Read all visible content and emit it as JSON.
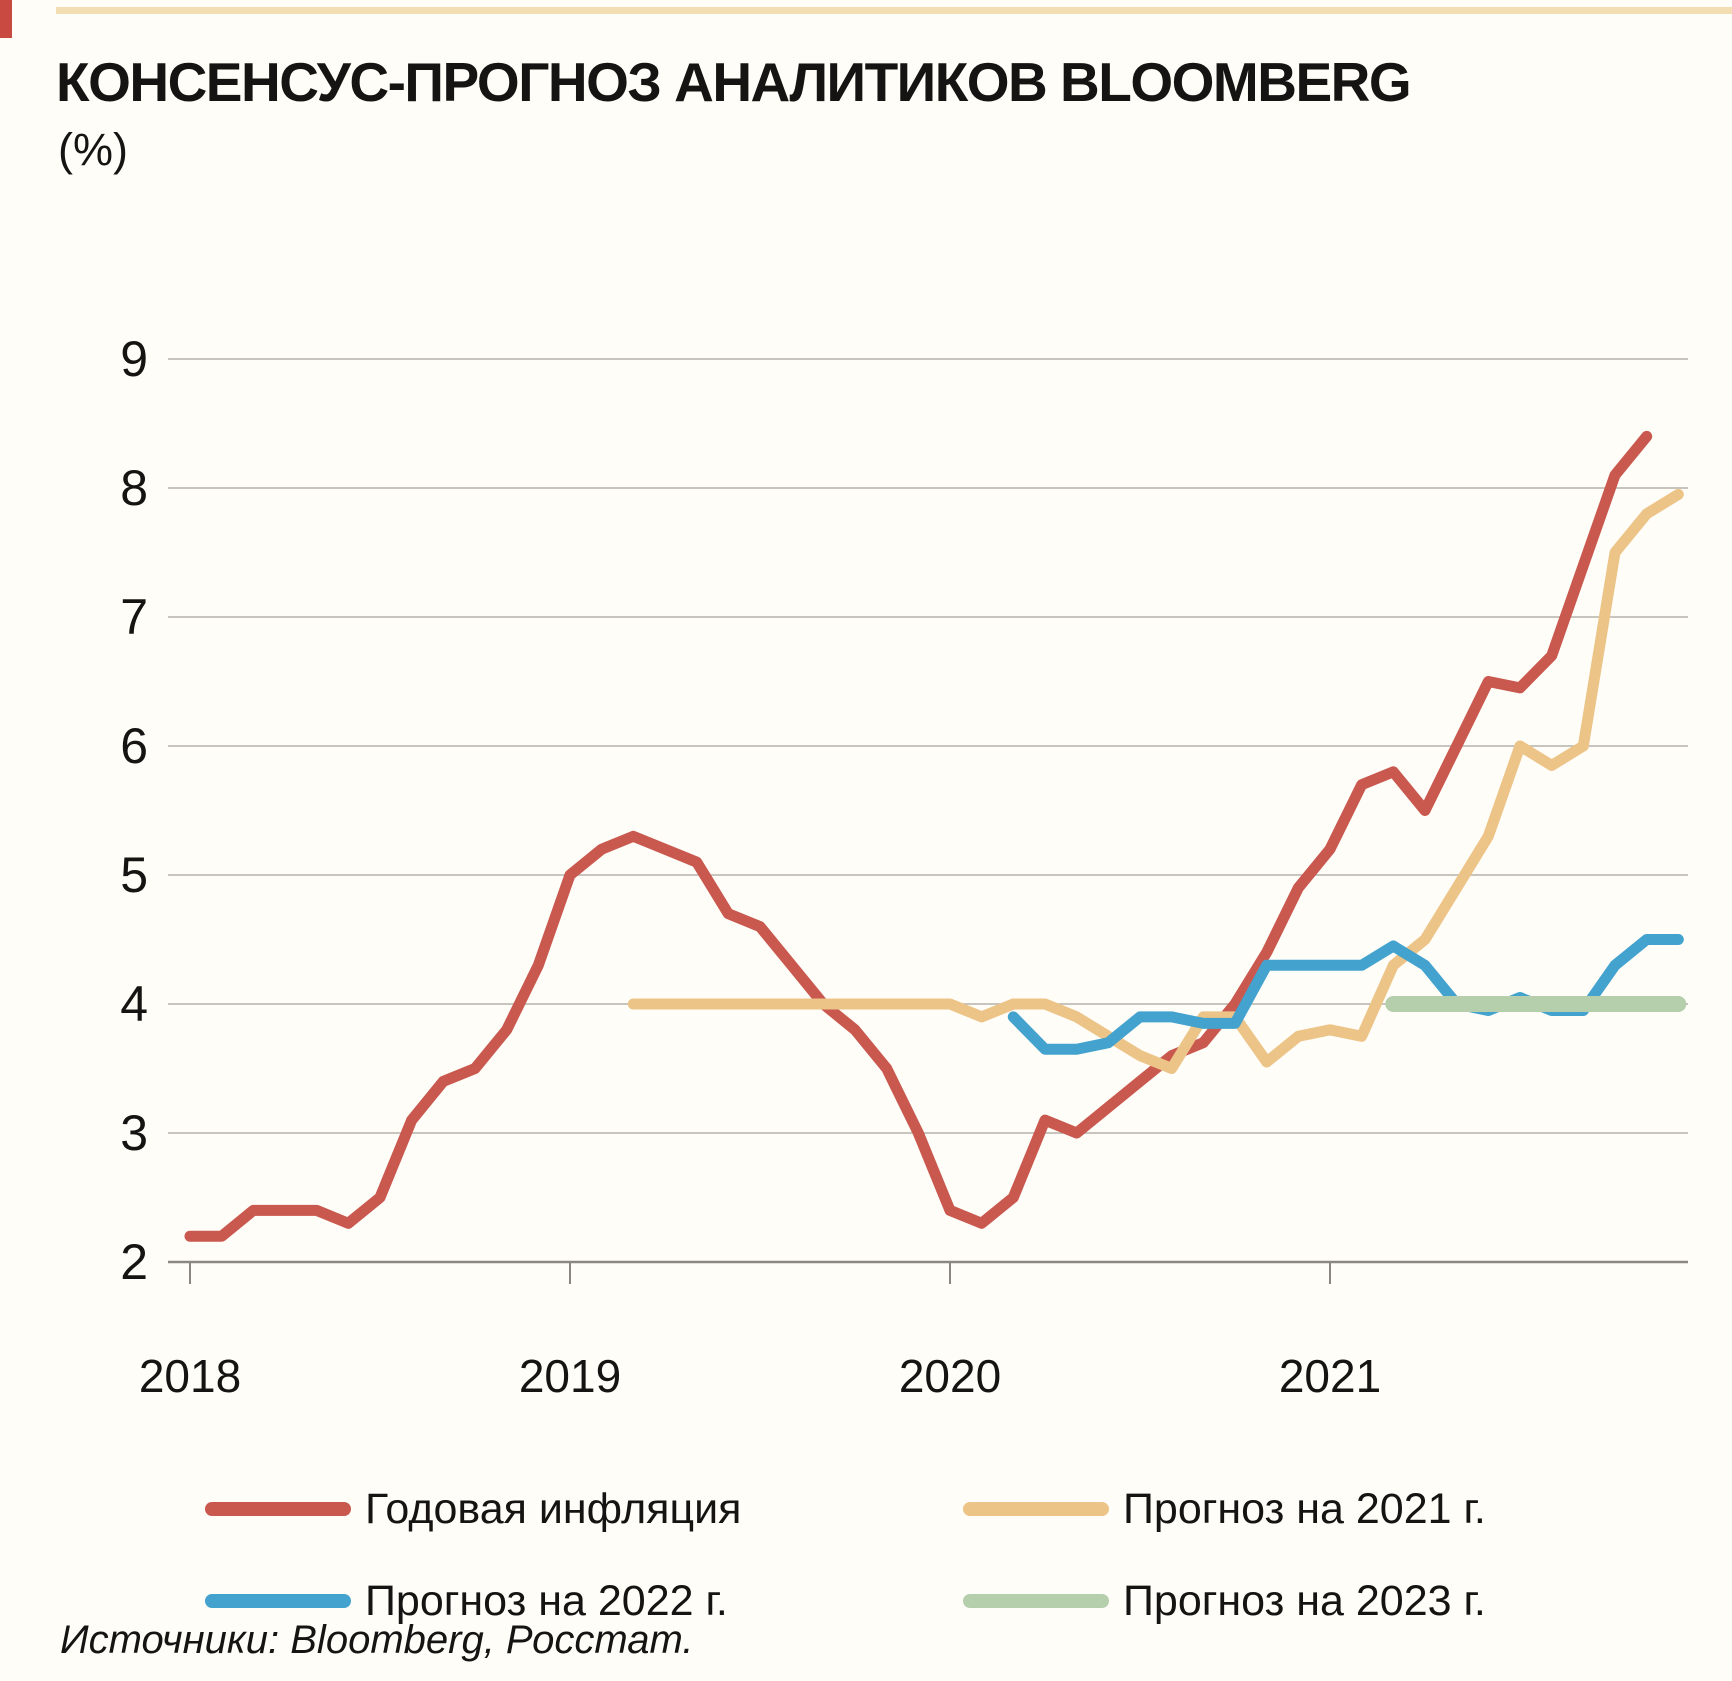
{
  "page": {
    "title": "КОНСЕНСУС-ПРОГНОЗ АНАЛИТИКОВ BLOOMBERG",
    "subtitle": "(%)",
    "source": "Источники: Bloomberg, Росстат."
  },
  "theme": {
    "background": "#fffdf8",
    "top_rule_color": "#f3ddb3",
    "corner_mark_color": "#c94a40",
    "grid_color": "#b5b1aa",
    "axis_color": "#8a8781",
    "text_color": "#161412"
  },
  "chart_data": {
    "type": "line",
    "title": "КОНСЕНСУС-ПРОГНОЗ АНАЛИТИКОВ BLOOMBERG",
    "ylabel": "(%)",
    "xlabel": "",
    "ylim": [
      2,
      9
    ],
    "ytick_labels": [
      9,
      8,
      7,
      6,
      5,
      4,
      3,
      2
    ],
    "xtick_labels": [
      "2018",
      "2019",
      "2020",
      "2021"
    ],
    "grid": true,
    "legend_position": "bottom-two-columns",
    "x_unit": "months, index 0 = Jan 2018, monthly points through Dec 2021",
    "series": [
      {
        "name": "Годовая инфляция",
        "color": "#c9584f",
        "stroke_width": 11,
        "start_month_index": 0,
        "values": [
          2.2,
          2.2,
          2.4,
          2.4,
          2.4,
          2.3,
          2.5,
          3.1,
          3.4,
          3.5,
          3.8,
          4.3,
          5.0,
          5.2,
          5.3,
          5.2,
          5.1,
          4.7,
          4.6,
          4.3,
          4.0,
          3.8,
          3.5,
          3.0,
          2.4,
          2.3,
          2.5,
          3.1,
          3.0,
          3.2,
          3.4,
          3.6,
          3.7,
          4.0,
          4.4,
          4.9,
          5.2,
          5.7,
          5.8,
          5.5,
          6.0,
          6.5,
          6.45,
          6.7,
          7.4,
          8.1,
          8.4
        ]
      },
      {
        "name": "Прогноз на 2021 г.",
        "color": "#edc487",
        "stroke_width": 11,
        "start_month_index": 14,
        "values": [
          4.0,
          4.0,
          4.0,
          4.0,
          4.0,
          4.0,
          4.0,
          4.0,
          4.0,
          4.0,
          4.0,
          3.9,
          4.0,
          4.0,
          3.9,
          3.75,
          3.6,
          3.5,
          3.9,
          3.9,
          3.55,
          3.75,
          3.8,
          3.75,
          4.3,
          4.5,
          4.9,
          5.3,
          6.0,
          5.85,
          6.0,
          7.5,
          7.8,
          7.95
        ]
      },
      {
        "name": "Прогноз на 2022 г.",
        "color": "#43a3ce",
        "stroke_width": 11,
        "start_month_index": 26,
        "values": [
          3.9,
          3.65,
          3.65,
          3.7,
          3.9,
          3.9,
          3.85,
          3.85,
          4.3,
          4.3,
          4.3,
          4.3,
          4.45,
          4.3,
          4.0,
          3.95,
          4.05,
          3.95,
          3.95,
          4.3,
          4.5,
          4.5
        ]
      },
      {
        "name": "Прогноз на 2023 г.",
        "color": "#b5cfad",
        "stroke_width": 16,
        "start_month_index": 38,
        "values": [
          4.0,
          4.0,
          4.0,
          4.0,
          4.0,
          4.0,
          4.0,
          4.0,
          4.0,
          4.0
        ]
      }
    ]
  }
}
